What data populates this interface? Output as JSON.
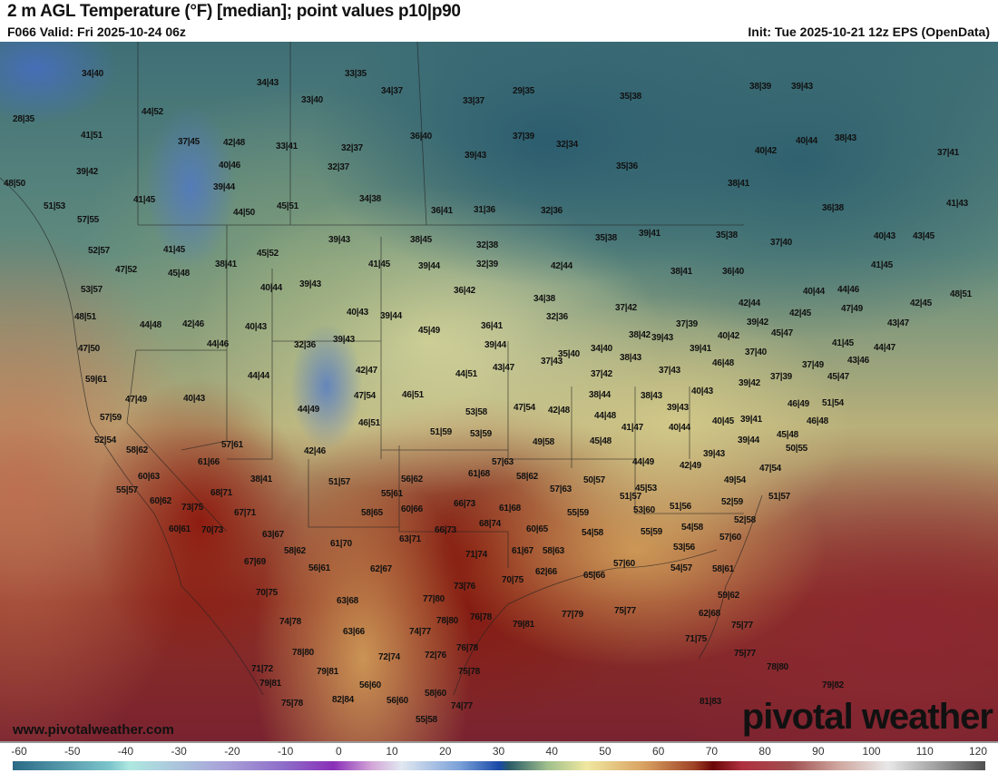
{
  "header": {
    "title": "2 m AGL Temperature (°F) [median]; point values p10|p90",
    "valid": "F066 Valid: Fri 2025-10-24 06z",
    "init": "Init: Tue 2025-10-21 12z EPS (OpenData)"
  },
  "map": {
    "watermark_url": "www.pivotalweather.com",
    "logo": "pivotal weather",
    "point_values": [
      "34|40",
      "34|43",
      "33|35",
      "33|40",
      "34|37",
      "33|37",
      "29|35",
      "35|38",
      "38|39",
      "39|43",
      "28|35",
      "44|52",
      "41|51",
      "37|45",
      "42|48",
      "33|41",
      "32|37",
      "36|40",
      "37|39",
      "32|34",
      "40|42",
      "40|44",
      "38|43",
      "37|41",
      "39|43",
      "39|42",
      "40|46",
      "32|37",
      "35|36",
      "48|50",
      "39|44",
      "38|41",
      "34|38",
      "41|45",
      "51|53",
      "44|50",
      "45|51",
      "36|41",
      "31|36",
      "32|36",
      "36|38",
      "41|43",
      "57|55",
      "52|57",
      "41|45",
      "45|52",
      "39|43",
      "38|45",
      "32|38",
      "35|38",
      "39|41",
      "35|38",
      "37|40",
      "40|43",
      "43|45",
      "47|52",
      "45|48",
      "38|41",
      "41|45",
      "39|44",
      "32|39",
      "42|44",
      "38|41",
      "36|40",
      "41|45",
      "53|57",
      "40|44",
      "39|43",
      "36|42",
      "40|44",
      "44|46",
      "42|45",
      "48|51",
      "48|51",
      "44|48",
      "42|46",
      "40|43",
      "40|43",
      "39|44",
      "34|38",
      "32|36",
      "37|42",
      "42|44",
      "42|45",
      "47|49",
      "43|47",
      "45|49",
      "36|41",
      "37|39",
      "39|42",
      "45|47",
      "38|42",
      "39|43",
      "40|42",
      "47|50",
      "44|46",
      "32|36",
      "39|43",
      "39|44",
      "41|45",
      "44|47",
      "35|40",
      "34|40",
      "38|43",
      "39|41",
      "37|40",
      "43|46",
      "45|47",
      "37|43",
      "43|47",
      "46|48",
      "37|49",
      "59|61",
      "44|44",
      "42|47",
      "44|51",
      "37|42",
      "37|43",
      "39|42",
      "37|39",
      "47|49",
      "40|43",
      "47|54",
      "46|51",
      "38|44",
      "38|43",
      "40|43",
      "46|49",
      "51|54",
      "44|49",
      "47|54",
      "42|48",
      "53|58",
      "39|43",
      "57|59",
      "46|51",
      "44|48",
      "40|45",
      "39|41",
      "46|48",
      "51|59",
      "53|59",
      "41|47",
      "40|44",
      "45|48",
      "52|54",
      "57|61",
      "49|58",
      "45|48",
      "39|44",
      "50|55",
      "58|62",
      "42|46",
      "61|66",
      "57|63",
      "44|49",
      "42|49",
      "39|43",
      "47|54",
      "60|63",
      "38|41",
      "51|57",
      "56|62",
      "61|68",
      "58|62",
      "50|57",
      "49|54",
      "55|57",
      "68|71",
      "55|61",
      "57|63",
      "45|53",
      "51|57",
      "51|56",
      "52|59",
      "51|57",
      "60|62",
      "73|75",
      "67|71",
      "60|66",
      "66|73",
      "58|65",
      "61|68",
      "55|59",
      "53|60",
      "52|58",
      "60|61",
      "70|73",
      "63|67",
      "66|73",
      "68|74",
      "60|65",
      "54|58",
      "54|58",
      "55|59",
      "57|60",
      "61|70",
      "63|71",
      "58|62",
      "61|67",
      "58|63",
      "71|74",
      "53|56",
      "67|69",
      "56|61",
      "62|67",
      "57|60",
      "54|57",
      "58|61",
      "70|75",
      "62|66",
      "65|66",
      "73|76",
      "70|75",
      "59|62",
      "63|68",
      "77|80",
      "77|79",
      "75|77",
      "62|68",
      "76|78",
      "79|81",
      "74|78",
      "78|80",
      "75|77",
      "63|66",
      "74|77",
      "71|75",
      "75|77",
      "78|80",
      "72|74",
      "72|76",
      "76|78",
      "71|72",
      "79|81",
      "75|78",
      "78|80",
      "79|81",
      "56|60",
      "58|60",
      "79|82",
      "75|78",
      "82|84",
      "56|60",
      "74|77",
      "81|83",
      "55|58"
    ]
  },
  "colorbar": {
    "ticks": [
      "-60",
      "-50",
      "-40",
      "-30",
      "-20",
      "-10",
      "0",
      "10",
      "20",
      "30",
      "40",
      "50",
      "60",
      "70",
      "80",
      "90",
      "100",
      "110",
      "120"
    ],
    "min": -60,
    "max": 120
  }
}
